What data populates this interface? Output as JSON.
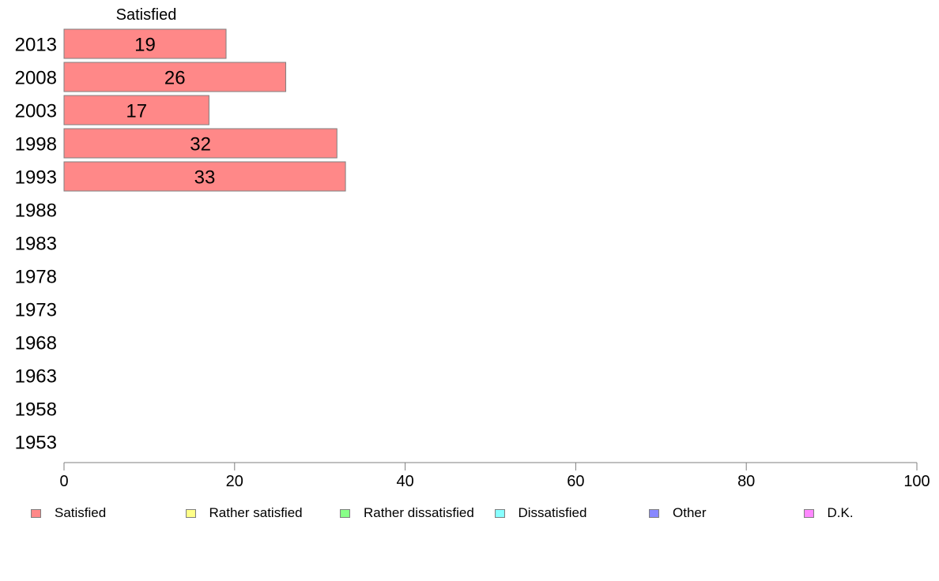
{
  "chart_data": {
    "type": "bar",
    "orientation": "horizontal",
    "stacked": true,
    "categories": [
      "2013",
      "2008",
      "2003",
      "1998",
      "1993",
      "1988",
      "1983",
      "1978",
      "1973",
      "1968",
      "1963",
      "1958",
      "1953"
    ],
    "series": [
      {
        "name": "Satisfied",
        "color": "#ff8888",
        "values": [
          19,
          26,
          17,
          32,
          33,
          null,
          null,
          null,
          null,
          null,
          null,
          null,
          null
        ]
      },
      {
        "name": "Rather satisfied",
        "color": "#ffff88",
        "values": [
          null,
          null,
          null,
          null,
          null,
          null,
          null,
          null,
          null,
          null,
          null,
          null,
          null
        ]
      },
      {
        "name": "Rather dissatisfied",
        "color": "#88ff88",
        "values": [
          null,
          null,
          null,
          null,
          null,
          null,
          null,
          null,
          null,
          null,
          null,
          null,
          null
        ]
      },
      {
        "name": "Dissatisfied",
        "color": "#88ffff",
        "values": [
          null,
          null,
          null,
          null,
          null,
          null,
          null,
          null,
          null,
          null,
          null,
          null,
          null
        ]
      },
      {
        "name": "Other",
        "color": "#8888ff",
        "values": [
          null,
          null,
          null,
          null,
          null,
          null,
          null,
          null,
          null,
          null,
          null,
          null,
          null
        ]
      },
      {
        "name": "D.K.",
        "color": "#ff88ff",
        "values": [
          null,
          null,
          null,
          null,
          null,
          null,
          null,
          null,
          null,
          null,
          null,
          null,
          null
        ]
      }
    ],
    "series_header": "Satisfied",
    "xlim": [
      0,
      100
    ],
    "xticks": [
      0,
      20,
      40,
      60,
      80,
      100
    ],
    "grid": false,
    "legend_position": "bottom"
  }
}
